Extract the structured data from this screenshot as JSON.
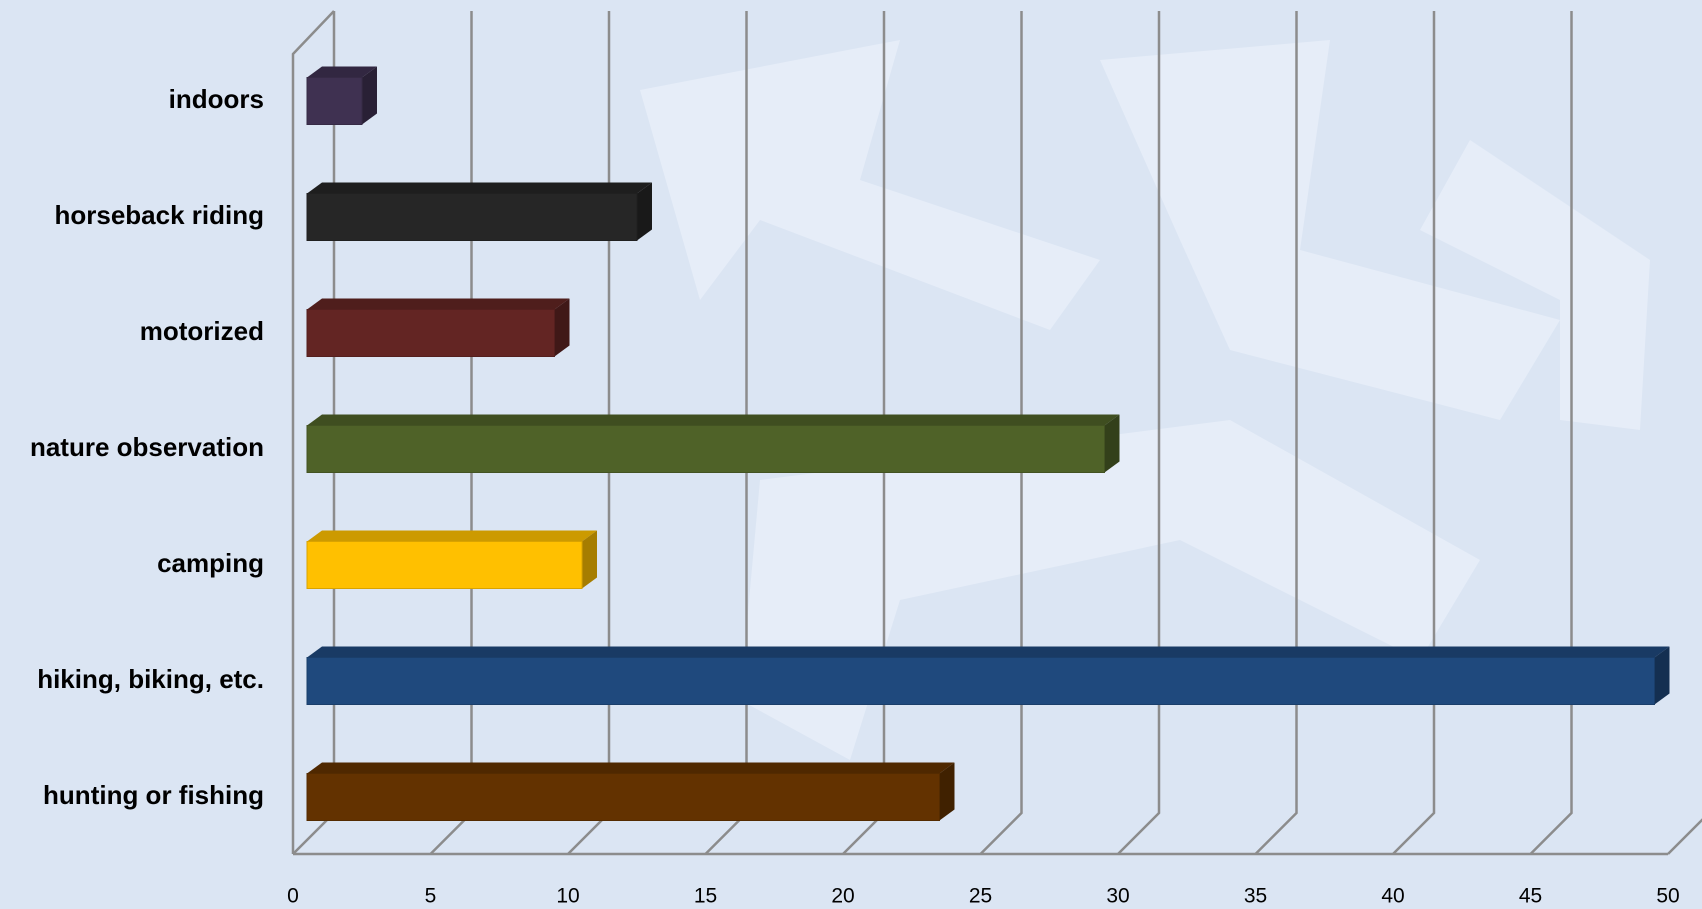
{
  "chart_data": {
    "type": "bar",
    "orientation": "horizontal",
    "categories": [
      "indoors",
      "horseback riding",
      "motorized",
      "nature observation",
      "camping",
      "hiking, biking, etc.",
      "hunting or fishing"
    ],
    "values": [
      2,
      12,
      9,
      29,
      10,
      49,
      23
    ],
    "colors": [
      "#3f3151",
      "#262626",
      "#632523",
      "#4f6228",
      "#ffc000",
      "#1f497d",
      "#633200"
    ],
    "xlim": [
      0,
      50
    ],
    "xticks": [
      0,
      5,
      10,
      15,
      20,
      25,
      30,
      35,
      40,
      45,
      50
    ],
    "grid": true
  }
}
